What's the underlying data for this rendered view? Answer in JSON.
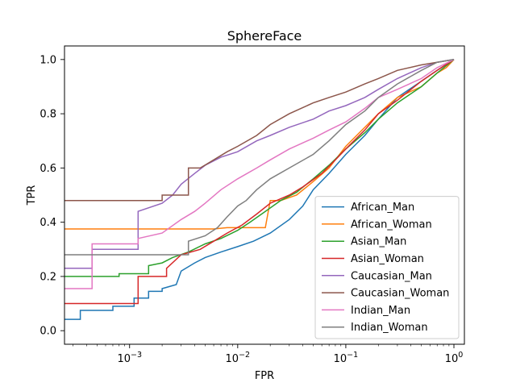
{
  "chart_data": {
    "type": "line",
    "title": "SphereFace",
    "xlabel": "FPR",
    "ylabel": "TPR",
    "xscale": "log",
    "xlim": [
      0.00025,
      1.25
    ],
    "ylim": [
      -0.05,
      1.05
    ],
    "x_ticks": [
      {
        "value": 0.001,
        "base": "10",
        "exp": "−3"
      },
      {
        "value": 0.01,
        "base": "10",
        "exp": "−2"
      },
      {
        "value": 0.1,
        "base": "10",
        "exp": "−1"
      },
      {
        "value": 1,
        "base": "10",
        "exp": "0"
      }
    ],
    "y_ticks": [
      0.0,
      0.2,
      0.4,
      0.6,
      0.8,
      1.0
    ],
    "y_tick_labels": [
      "0.0",
      "0.2",
      "0.4",
      "0.6",
      "0.8",
      "1.0"
    ],
    "grid": false,
    "legend_position": "lower right",
    "series": [
      {
        "name": "African_Man",
        "color": "#1f77b4",
        "x": [
          0.00025,
          0.00035,
          0.00035,
          0.0007,
          0.0007,
          0.0011,
          0.0011,
          0.0015,
          0.0015,
          0.002,
          0.002,
          0.0027,
          0.003,
          0.004,
          0.005,
          0.007,
          0.01,
          0.014,
          0.02,
          0.03,
          0.04,
          0.05,
          0.07,
          0.1,
          0.15,
          0.2,
          0.3,
          0.5,
          0.7,
          1.0
        ],
        "y": [
          0.042,
          0.042,
          0.075,
          0.075,
          0.09,
          0.09,
          0.12,
          0.12,
          0.145,
          0.145,
          0.155,
          0.17,
          0.22,
          0.25,
          0.27,
          0.29,
          0.31,
          0.33,
          0.36,
          0.41,
          0.46,
          0.52,
          0.58,
          0.65,
          0.72,
          0.78,
          0.86,
          0.92,
          0.96,
          1.0
        ]
      },
      {
        "name": "African_Woman",
        "color": "#ff7f0e",
        "x": [
          0.00025,
          0.006,
          0.008,
          0.01,
          0.014,
          0.018,
          0.02,
          0.025,
          0.035,
          0.05,
          0.07,
          0.1,
          0.15,
          0.2,
          0.3,
          0.5,
          0.7,
          0.85,
          1.0
        ],
        "y": [
          0.375,
          0.375,
          0.38,
          0.38,
          0.38,
          0.38,
          0.48,
          0.48,
          0.5,
          0.55,
          0.6,
          0.68,
          0.75,
          0.8,
          0.86,
          0.9,
          0.95,
          0.97,
          1.0
        ]
      },
      {
        "name": "Asian_Man",
        "color": "#2ca02c",
        "x": [
          0.00025,
          0.0008,
          0.0008,
          0.0015,
          0.0015,
          0.002,
          0.0025,
          0.0035,
          0.005,
          0.007,
          0.01,
          0.013,
          0.018,
          0.025,
          0.035,
          0.05,
          0.07,
          0.1,
          0.15,
          0.2,
          0.3,
          0.5,
          0.7,
          1.0
        ],
        "y": [
          0.2,
          0.2,
          0.21,
          0.21,
          0.24,
          0.25,
          0.27,
          0.29,
          0.32,
          0.34,
          0.37,
          0.4,
          0.44,
          0.48,
          0.51,
          0.56,
          0.61,
          0.67,
          0.73,
          0.78,
          0.84,
          0.9,
          0.95,
          1.0
        ]
      },
      {
        "name": "Asian_Woman",
        "color": "#d62728",
        "x": [
          0.00025,
          0.0012,
          0.0012,
          0.0022,
          0.0022,
          0.003,
          0.0045,
          0.006,
          0.008,
          0.011,
          0.015,
          0.02,
          0.03,
          0.04,
          0.06,
          0.08,
          0.1,
          0.15,
          0.2,
          0.3,
          0.5,
          0.7,
          1.0
        ],
        "y": [
          0.1,
          0.1,
          0.2,
          0.2,
          0.23,
          0.28,
          0.3,
          0.33,
          0.36,
          0.39,
          0.43,
          0.47,
          0.5,
          0.53,
          0.58,
          0.63,
          0.67,
          0.74,
          0.8,
          0.85,
          0.92,
          0.96,
          1.0
        ]
      },
      {
        "name": "Caucasian_Man",
        "color": "#9467bd",
        "x": [
          0.00025,
          0.00045,
          0.00045,
          0.0012,
          0.0012,
          0.002,
          0.0025,
          0.003,
          0.004,
          0.005,
          0.007,
          0.01,
          0.015,
          0.02,
          0.03,
          0.05,
          0.07,
          0.1,
          0.15,
          0.2,
          0.3,
          0.5,
          0.7,
          1.0
        ],
        "y": [
          0.23,
          0.23,
          0.3,
          0.3,
          0.44,
          0.47,
          0.5,
          0.54,
          0.58,
          0.61,
          0.64,
          0.66,
          0.7,
          0.72,
          0.75,
          0.78,
          0.81,
          0.83,
          0.86,
          0.89,
          0.93,
          0.97,
          0.99,
          1.0
        ]
      },
      {
        "name": "Caucasian_Woman",
        "color": "#8c564b",
        "x": [
          0.00025,
          0.002,
          0.002,
          0.0035,
          0.0035,
          0.0045,
          0.006,
          0.008,
          0.01,
          0.015,
          0.02,
          0.03,
          0.05,
          0.07,
          0.1,
          0.15,
          0.2,
          0.3,
          0.5,
          0.7,
          1.0
        ],
        "y": [
          0.48,
          0.48,
          0.5,
          0.5,
          0.6,
          0.6,
          0.63,
          0.66,
          0.68,
          0.72,
          0.76,
          0.8,
          0.84,
          0.86,
          0.88,
          0.91,
          0.93,
          0.96,
          0.98,
          0.99,
          1.0
        ]
      },
      {
        "name": "Indian_Man",
        "color": "#e377c2",
        "x": [
          0.00025,
          0.00045,
          0.00045,
          0.0012,
          0.0012,
          0.002,
          0.003,
          0.004,
          0.005,
          0.007,
          0.01,
          0.015,
          0.02,
          0.03,
          0.05,
          0.07,
          0.1,
          0.15,
          0.2,
          0.3,
          0.5,
          0.7,
          1.0
        ],
        "y": [
          0.155,
          0.155,
          0.32,
          0.32,
          0.34,
          0.36,
          0.41,
          0.44,
          0.47,
          0.52,
          0.56,
          0.6,
          0.63,
          0.67,
          0.71,
          0.74,
          0.77,
          0.82,
          0.86,
          0.89,
          0.93,
          0.97,
          1.0
        ]
      },
      {
        "name": "Indian_Woman",
        "color": "#7f7f7f",
        "x": [
          0.00025,
          0.0035,
          0.0035,
          0.005,
          0.0065,
          0.008,
          0.01,
          0.012,
          0.015,
          0.02,
          0.03,
          0.05,
          0.07,
          0.1,
          0.15,
          0.2,
          0.3,
          0.5,
          0.7,
          1.0
        ],
        "y": [
          0.28,
          0.28,
          0.33,
          0.35,
          0.38,
          0.42,
          0.46,
          0.48,
          0.52,
          0.56,
          0.6,
          0.65,
          0.7,
          0.76,
          0.81,
          0.86,
          0.91,
          0.96,
          0.99,
          1.0
        ]
      }
    ]
  }
}
